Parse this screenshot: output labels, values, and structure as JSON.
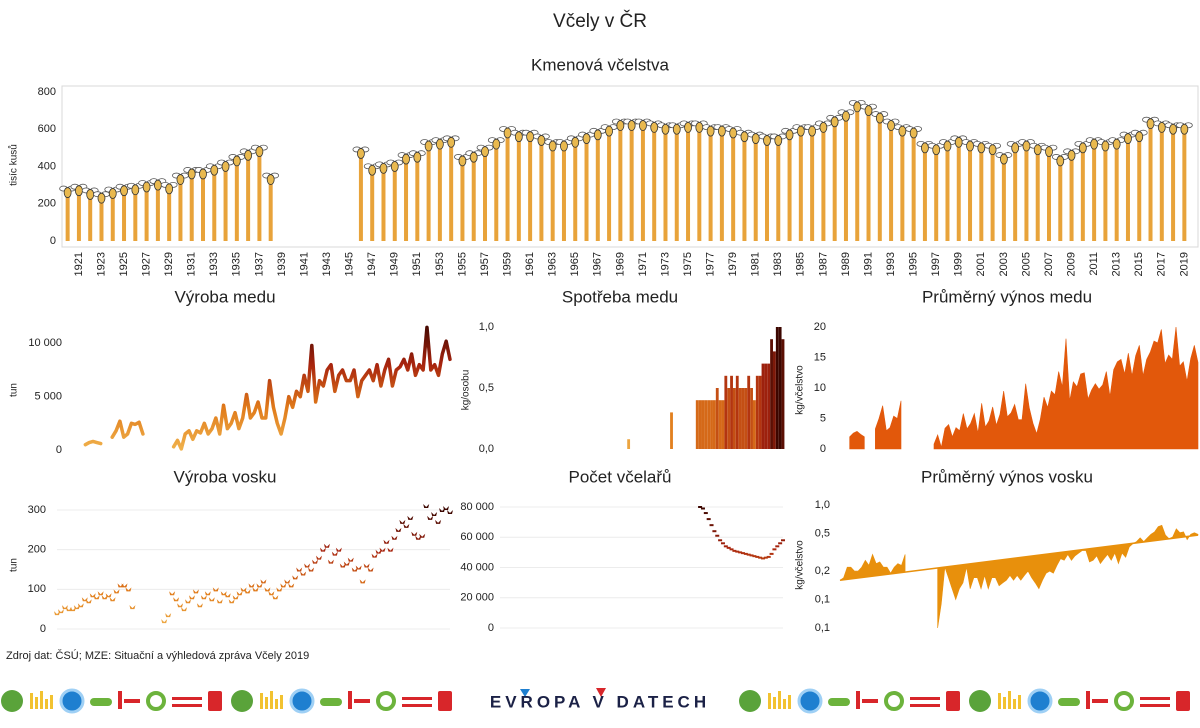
{
  "title": "Včely v ČR",
  "source": "Zdroj dat: ČSÚ; MZE: Situační a výhledová zpráva Včely 2019",
  "brand": "EVROPA V DATECH",
  "chart_data": [
    {
      "type": "bar",
      "title": "Kmenová včelstva",
      "ylabel": "tisíc kusů",
      "color": "#e8a33a",
      "markers": true,
      "categories": [
        null,
        "1921",
        null,
        "1923",
        null,
        "1925",
        null,
        "1927",
        null,
        "1929",
        null,
        "1931",
        null,
        "1933",
        null,
        "1935",
        null,
        "1937",
        null,
        "1939",
        null,
        "1941",
        null,
        "1943",
        null,
        "1945",
        null,
        "1947",
        null,
        "1949",
        null,
        "1951",
        null,
        "1953",
        null,
        "1955",
        null,
        "1957",
        null,
        "1959",
        null,
        "1961",
        null,
        "1963",
        null,
        "1965",
        null,
        "1967",
        null,
        "1969",
        null,
        "1971",
        null,
        "1973",
        null,
        "1975",
        null,
        "1977",
        null,
        "1979",
        null,
        "1981",
        null,
        "1983",
        null,
        "1985",
        null,
        "1987",
        null,
        "1989",
        null,
        "1991",
        null,
        "1993",
        null,
        "1995",
        null,
        "1997",
        null,
        "1999",
        null,
        "2001",
        null,
        "2003",
        null,
        "2005",
        null,
        "2007",
        null,
        "2009",
        null,
        "2011",
        null,
        "2013",
        null,
        "2015",
        null,
        "2017",
        null,
        "2019"
      ],
      "values": [
        260,
        270,
        250,
        230,
        255,
        270,
        275,
        290,
        300,
        280,
        330,
        360,
        360,
        380,
        400,
        430,
        460,
        480,
        330,
        null,
        null,
        null,
        null,
        null,
        null,
        null,
        470,
        380,
        390,
        400,
        440,
        450,
        510,
        520,
        530,
        430,
        450,
        480,
        520,
        580,
        560,
        560,
        540,
        510,
        510,
        530,
        550,
        570,
        590,
        620,
        620,
        620,
        610,
        600,
        600,
        610,
        610,
        590,
        590,
        580,
        560,
        550,
        540,
        540,
        570,
        590,
        590,
        610,
        640,
        670,
        720,
        700,
        660,
        620,
        590,
        580,
        500,
        490,
        510,
        530,
        510,
        500,
        490,
        440,
        500,
        510,
        490,
        480,
        430,
        460,
        500,
        520,
        510,
        520,
        550,
        560,
        630,
        610,
        600,
        600
      ],
      "ylim": [
        0,
        800
      ],
      "yticks": [
        0,
        200,
        400,
        600,
        800
      ],
      "grid": false
    },
    {
      "type": "line",
      "title": "Výroba medu",
      "ylabel": "tun",
      "color_scale": [
        "#f0b24c",
        "#e07a1a",
        "#a8240e",
        "#3c0600"
      ],
      "x": [
        1920,
        1921,
        1922,
        1923,
        1924,
        1925,
        1926,
        1927,
        1928,
        1929,
        1930,
        1931,
        1932,
        1933,
        1934,
        1935,
        1936,
        1937,
        1938,
        1939,
        1940,
        1941,
        1942,
        1943,
        1944,
        1945,
        1946,
        1947,
        1948,
        1949,
        1950,
        1951,
        1952,
        1953,
        1954,
        1955,
        1956,
        1957,
        1958,
        1959,
        1960,
        1961,
        1962,
        1963,
        1964,
        1965,
        1966,
        1967,
        1968,
        1969,
        1970,
        1971,
        1972,
        1973,
        1974,
        1975,
        1976,
        1977,
        1978,
        1979,
        1980,
        1981,
        1982,
        1983,
        1984,
        1985,
        1986,
        1987,
        1988,
        1989,
        1990,
        1991,
        1992,
        1993,
        1994,
        1995,
        1996,
        1997,
        1998,
        1999,
        2000,
        2001,
        2002,
        2003,
        2004,
        2005,
        2006,
        2007,
        2008,
        2009,
        2010,
        2011,
        2012,
        2013,
        2014,
        2015,
        2016,
        2017,
        2018,
        2019
      ],
      "values": [
        null,
        null,
        null,
        null,
        500,
        700,
        800,
        700,
        600,
        null,
        null,
        1200,
        1800,
        2700,
        1200,
        1500,
        2500,
        2400,
        2600,
        1500,
        null,
        null,
        null,
        null,
        null,
        null,
        null,
        300,
        900,
        100,
        1500,
        1800,
        1000,
        1800,
        1600,
        2500,
        1500,
        2000,
        3000,
        1500,
        4200,
        2000,
        2500,
        3500,
        2000,
        3000,
        5200,
        3000,
        3500,
        4500,
        3000,
        3000,
        6500,
        4000,
        2500,
        1500,
        3000,
        5000,
        4000,
        5500,
        5000,
        7000,
        5500,
        9800,
        4500,
        6500,
        6000,
        7500,
        8000,
        5500,
        7000,
        7500,
        6500,
        6500,
        7500,
        5000,
        6500,
        7000,
        7500,
        6500,
        8000,
        6000,
        7500,
        8500,
        6000,
        7500,
        7800,
        8500,
        7500,
        9000,
        7000,
        8000,
        7500,
        11500,
        7500,
        8000,
        7000,
        9000,
        10200,
        8500
      ],
      "xlim": [
        1920,
        2019
      ],
      "ylim": [
        0,
        12000
      ],
      "yticks": [
        0,
        {
          "value": 5000,
          "label": "5 000"
        },
        {
          "value": 10000,
          "label": "10 000"
        }
      ],
      "grid": false
    },
    {
      "type": "bar",
      "title": "Spotřeba medu",
      "ylabel": "kg/osobu",
      "color_scale": [
        "#f0b24c",
        "#e07a1a",
        "#a8240e",
        "#3c0600"
      ],
      "x": [
        1965,
        1980,
        1989,
        1990,
        1991,
        1992,
        1993,
        1994,
        1995,
        1996,
        1997,
        1998,
        1999,
        2000,
        2001,
        2002,
        2003,
        2004,
        2005,
        2006,
        2007,
        2008,
        2009,
        2010,
        2011,
        2012,
        2013,
        2014,
        2015,
        2016,
        2017,
        2018,
        2019
      ],
      "values": [
        0.08,
        0.3,
        0.4,
        0.4,
        0.4,
        0.4,
        0.4,
        0.4,
        0.4,
        0.5,
        0.4,
        0.4,
        0.6,
        0.5,
        0.6,
        0.5,
        0.6,
        0.5,
        0.5,
        0.5,
        0.6,
        0.5,
        0.4,
        0.6,
        0.6,
        0.7,
        0.7,
        0.7,
        0.9,
        0.8,
        1.0,
        1.0,
        0.9
      ],
      "xlim": [
        1920,
        2019
      ],
      "ylim": [
        0,
        1
      ],
      "yticks": [
        {
          "value": 0,
          "label": "0,0"
        },
        {
          "value": 0.5,
          "label": "0,5"
        },
        {
          "value": 1,
          "label": "1,0"
        }
      ],
      "grid": false
    },
    {
      "type": "area",
      "title": "Průměrný výnos medu",
      "ylabel": "kg/včelstvo",
      "color": "#e2580b",
      "x": [
        1920,
        1921,
        1922,
        1923,
        1924,
        1925,
        1926,
        1927,
        1928,
        1929,
        1930,
        1931,
        1932,
        1933,
        1934,
        1935,
        1936,
        1937,
        1938,
        1939,
        1940,
        1941,
        1942,
        1943,
        1944,
        1945,
        1946,
        1947,
        1948,
        1949,
        1950,
        1951,
        1952,
        1953,
        1954,
        1955,
        1956,
        1957,
        1958,
        1959,
        1960,
        1961,
        1962,
        1963,
        1964,
        1965,
        1966,
        1967,
        1968,
        1969,
        1970,
        1971,
        1972,
        1973,
        1974,
        1975,
        1976,
        1977,
        1978,
        1979,
        1980,
        1981,
        1982,
        1983,
        1984,
        1985,
        1986,
        1987,
        1988,
        1989,
        1990,
        1991,
        1992,
        1993,
        1994,
        1995,
        1996,
        1997,
        1998,
        1999,
        2000,
        2001,
        2002,
        2003,
        2004,
        2005,
        2006,
        2007,
        2008,
        2009,
        2010,
        2011,
        2012,
        2013,
        2014,
        2015,
        2016,
        2017,
        2018,
        2019
      ],
      "values": [
        null,
        null,
        null,
        null,
        2.0,
        2.6,
        2.9,
        2.4,
        2.0,
        null,
        null,
        3.3,
        5.0,
        7.1,
        3.0,
        3.5,
        5.4,
        5.0,
        7.9,
        null,
        null,
        null,
        null,
        null,
        null,
        null,
        null,
        0.8,
        2.3,
        0.3,
        3.4,
        4.0,
        2.0,
        3.5,
        3.0,
        5.8,
        3.3,
        4.2,
        5.8,
        2.6,
        7.5,
        3.6,
        4.6,
        6.9,
        3.9,
        5.7,
        9.5,
        5.3,
        5.9,
        7.3,
        4.8,
        4.8,
        10.7,
        6.7,
        4.2,
        2.5,
        4.9,
        8.5,
        6.8,
        9.5,
        8.9,
        12.7,
        10.2,
        18.1,
        7.9,
        11.0,
        10.2,
        12.3,
        12.5,
        8.2,
        9.7,
        10.7,
        9.8,
        10.5,
        12.7,
        8.6,
        13.0,
        14.3,
        14.7,
        12.3,
        15.7,
        12.0,
        15.3,
        17.0,
        12.0,
        14.7,
        15.9,
        17.7,
        17.4,
        19.6,
        14.0,
        15.4,
        14.7,
        20.0,
        13.6,
        14.3,
        11.1,
        14.8,
        17.0,
        14.2
      ],
      "xlim": [
        1920,
        2019
      ],
      "ylim": [
        0,
        20
      ],
      "yticks": [
        0,
        5,
        10,
        15,
        20
      ],
      "grid": false
    },
    {
      "type": "scatter",
      "title": "Výroba vosku",
      "ylabel": "tun",
      "color_scale": [
        "#f0b24c",
        "#e07a1a",
        "#a8240e",
        "#3c0600"
      ],
      "x": [
        1920,
        1921,
        1922,
        1923,
        1924,
        1925,
        1926,
        1927,
        1928,
        1929,
        1930,
        1931,
        1932,
        1933,
        1934,
        1935,
        1936,
        1937,
        1938,
        1939,
        1940,
        1941,
        1942,
        1943,
        1944,
        1945,
        1946,
        1947,
        1948,
        1949,
        1950,
        1951,
        1952,
        1953,
        1954,
        1955,
        1956,
        1957,
        1958,
        1959,
        1960,
        1961,
        1962,
        1963,
        1964,
        1965,
        1966,
        1967,
        1968,
        1969,
        1970,
        1971,
        1972,
        1973,
        1974,
        1975,
        1976,
        1977,
        1978,
        1979,
        1980,
        1981,
        1982,
        1983,
        1984,
        1985,
        1986,
        1987,
        1988,
        1989,
        1990,
        1991,
        1992,
        1993,
        1994,
        1995,
        1996,
        1997,
        1998,
        1999,
        2000,
        2001,
        2002,
        2003,
        2004,
        2005,
        2006,
        2007,
        2008,
        2009,
        2010,
        2011,
        2012,
        2013,
        2014,
        2015,
        2016,
        2017,
        2018,
        2019
      ],
      "values": [
        40,
        45,
        55,
        50,
        50,
        55,
        60,
        75,
        70,
        85,
        80,
        90,
        80,
        85,
        75,
        95,
        110,
        110,
        100,
        55,
        null,
        null,
        null,
        null,
        null,
        null,
        null,
        20,
        35,
        90,
        75,
        60,
        50,
        70,
        80,
        95,
        60,
        80,
        90,
        75,
        100,
        70,
        90,
        85,
        70,
        80,
        90,
        100,
        95,
        110,
        100,
        110,
        120,
        100,
        90,
        80,
        100,
        110,
        120,
        110,
        130,
        150,
        140,
        160,
        150,
        170,
        180,
        200,
        210,
        170,
        190,
        200,
        160,
        165,
        175,
        150,
        155,
        120,
        160,
        150,
        185,
        195,
        200,
        220,
        200,
        230,
        250,
        270,
        260,
        280,
        240,
        230,
        235,
        310,
        280,
        290,
        270,
        300,
        305,
        295
      ],
      "xlim": [
        1920,
        2019
      ],
      "ylim": [
        0,
        300
      ],
      "yticks": [
        0,
        100,
        200,
        300
      ],
      "grid": true
    },
    {
      "type": "scatter",
      "title": "Počet včelařů",
      "color_scale": [
        "#f0b24c",
        "#e07a1a",
        "#a8240e",
        "#3c0600"
      ],
      "x": [
        1990,
        1991,
        1992,
        1993,
        1994,
        1995,
        1996,
        1997,
        1998,
        1999,
        2000,
        2001,
        2002,
        2003,
        2004,
        2005,
        2006,
        2007,
        2008,
        2009,
        2010,
        2011,
        2012,
        2013,
        2014,
        2015,
        2016,
        2017,
        2018,
        2019
      ],
      "values": [
        80000,
        79000,
        76000,
        72000,
        68000,
        64000,
        61000,
        58000,
        56000,
        54000,
        53000,
        52000,
        51000,
        50500,
        50000,
        49500,
        49000,
        48500,
        48000,
        47500,
        47000,
        46500,
        46000,
        46500,
        47000,
        49000,
        52000,
        54000,
        56000,
        58000
      ],
      "xlim": [
        1920,
        2019
      ],
      "ylim": [
        0,
        80000
      ],
      "yticks": [
        0,
        {
          "value": 20000,
          "label": "20 000"
        },
        {
          "value": 40000,
          "label": "40 000"
        },
        {
          "value": 60000,
          "label": "60 000"
        },
        {
          "value": 80000,
          "label": "80 000"
        }
      ],
      "grid": true
    },
    {
      "type": "area",
      "title": "Průměrný výnos vosku",
      "ylabel": "kg/včelstvo",
      "color": "#e8900c",
      "log": true,
      "x": [
        1920,
        1921,
        1922,
        1923,
        1924,
        1925,
        1926,
        1927,
        1928,
        1929,
        1930,
        1931,
        1932,
        1933,
        1934,
        1935,
        1936,
        1937,
        1938,
        1939,
        1940,
        1941,
        1942,
        1943,
        1944,
        1945,
        1946,
        1947,
        1948,
        1949,
        1950,
        1951,
        1952,
        1953,
        1954,
        1955,
        1956,
        1957,
        1958,
        1959,
        1960,
        1961,
        1962,
        1963,
        1964,
        1965,
        1966,
        1967,
        1968,
        1969,
        1970,
        1971,
        1972,
        1973,
        1974,
        1975,
        1976,
        1977,
        1978,
        1979,
        1980,
        1981,
        1982,
        1983,
        1984,
        1985,
        1986,
        1987,
        1988,
        1989,
        1990,
        1991,
        1992,
        1993,
        1994,
        1995,
        1996,
        1997,
        1998,
        1999,
        2000,
        2001,
        2002,
        2003,
        2004,
        2005,
        2006,
        2007,
        2008,
        2009,
        2010,
        2011,
        2012,
        2013,
        2014,
        2015,
        2016,
        2017,
        2018,
        2019
      ],
      "values": [
        0.16,
        0.17,
        0.22,
        0.22,
        0.2,
        0.2,
        0.22,
        0.26,
        0.23,
        0.3,
        0.24,
        0.25,
        0.22,
        0.22,
        0.19,
        0.22,
        0.24,
        0.23,
        0.3,
        null,
        null,
        null,
        null,
        null,
        null,
        null,
        null,
        0.05,
        0.09,
        0.22,
        0.17,
        0.13,
        0.1,
        0.13,
        0.15,
        0.22,
        0.13,
        0.17,
        0.17,
        0.13,
        0.18,
        0.13,
        0.17,
        0.17,
        0.14,
        0.15,
        0.16,
        0.18,
        0.16,
        0.18,
        0.16,
        0.18,
        0.2,
        0.17,
        0.15,
        0.13,
        0.16,
        0.19,
        0.2,
        0.19,
        0.23,
        0.27,
        0.26,
        0.3,
        0.26,
        0.29,
        0.31,
        0.33,
        0.33,
        0.25,
        0.26,
        0.29,
        0.24,
        0.27,
        0.3,
        0.26,
        0.31,
        0.24,
        0.31,
        0.28,
        0.36,
        0.39,
        0.41,
        0.45,
        0.41,
        0.45,
        0.49,
        0.52,
        0.59,
        0.61,
        0.48,
        0.44,
        0.46,
        0.56,
        0.51,
        0.52,
        0.43,
        0.49,
        0.51,
        0.49
      ],
      "trend": {
        "x": [
          1920,
          2019
        ],
        "values": [
          0.16,
          0.48
        ]
      },
      "xlim": [
        1920,
        2019
      ],
      "ylim": [
        0.05,
        1
      ],
      "yticks": [
        {
          "value": 1,
          "label": "1,0"
        },
        {
          "value": 0.5,
          "label": "0,5"
        },
        {
          "value": 0.2,
          "label": "0,2"
        },
        {
          "value": 0.1,
          "label": "0,1"
        },
        {
          "value": 0.05,
          "label": "0,1"
        }
      ],
      "grid": false
    }
  ]
}
